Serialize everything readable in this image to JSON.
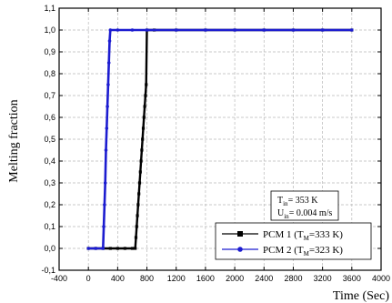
{
  "chart_data": {
    "type": "line",
    "title": "",
    "xlabel": "Time (Sec)",
    "ylabel": "Melting fraction",
    "xlim": [
      -400,
      4000
    ],
    "ylim": [
      -0.1,
      1.1
    ],
    "x_ticks": [
      -400,
      0,
      400,
      800,
      1200,
      1600,
      2000,
      2400,
      2800,
      3200,
      3600,
      4000
    ],
    "y_ticks": [
      -0.1,
      0.0,
      0.1,
      0.2,
      0.3,
      0.4,
      0.5,
      0.6,
      0.7,
      0.8,
      0.9,
      1.0,
      1.1
    ],
    "x_tick_labels": [
      "-400",
      "0",
      "400",
      "800",
      "1200",
      "1600",
      "2000",
      "2400",
      "2800",
      "3200",
      "3600",
      "4000"
    ],
    "y_tick_labels": [
      "-0,1",
      "0,0",
      "0,1",
      "0,2",
      "0,3",
      "0,4",
      "0,5",
      "0,6",
      "0,7",
      "0,8",
      "0,9",
      "1,0",
      "1,1"
    ],
    "grid": true,
    "legend_position": "bottom-right",
    "series": [
      {
        "name": "PCM 1 (T_M=333 K)",
        "label_main": "PCM 1 (T",
        "label_sub": "M",
        "label_end": "=333 K)",
        "color": "#000000",
        "x": [
          0,
          100,
          200,
          300,
          400,
          500,
          600,
          640,
          650,
          660,
          670,
          680,
          690,
          700,
          710,
          720,
          730,
          740,
          750,
          760,
          770,
          780,
          790,
          800,
          900,
          1200,
          1600,
          2000,
          2400,
          2800,
          3200,
          3600
        ],
        "y": [
          0,
          0,
          0,
          0,
          0,
          0,
          0,
          0,
          0.05,
          0.1,
          0.15,
          0.2,
          0.25,
          0.3,
          0.35,
          0.4,
          0.45,
          0.5,
          0.55,
          0.6,
          0.65,
          0.7,
          0.75,
          1.0,
          1.0,
          1.0,
          1.0,
          1.0,
          1.0,
          1.0,
          1.0,
          1.0
        ]
      },
      {
        "name": "PCM 2 (T_M=323 K)",
        "label_main": "PCM 2 (T",
        "label_sub": "M",
        "label_end": "=323 K)",
        "color": "#1c1cd0",
        "x": [
          0,
          100,
          200,
          210,
          220,
          230,
          240,
          250,
          260,
          270,
          280,
          290,
          300,
          400,
          600,
          800,
          1200,
          1600,
          2000,
          2400,
          2800,
          3200,
          3600
        ],
        "y": [
          0,
          0,
          0,
          0.1,
          0.2,
          0.3,
          0.45,
          0.55,
          0.65,
          0.75,
          0.85,
          0.95,
          1.0,
          1.0,
          1.0,
          1.0,
          1.0,
          1.0,
          1.0,
          1.0,
          1.0,
          1.0,
          1.0
        ]
      }
    ],
    "annotation": {
      "line1_main": "T",
      "line1_sub": "in",
      "line1_end": "= 353 K",
      "line2_main": "U",
      "line2_sub": "in",
      "line2_end": "= 0.004 m/s"
    }
  }
}
